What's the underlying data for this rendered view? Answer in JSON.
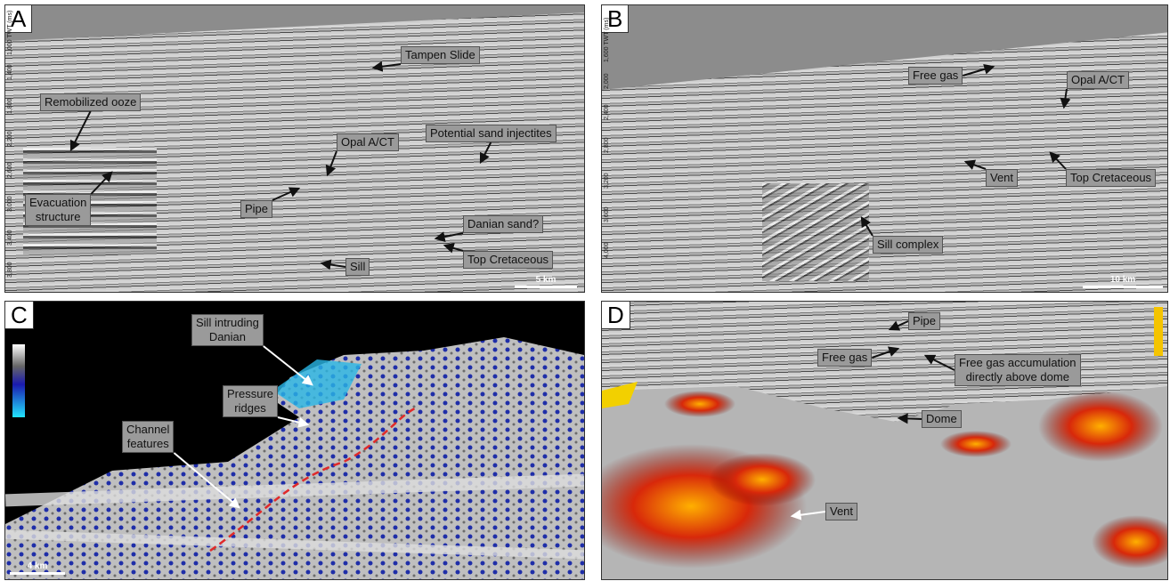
{
  "panels": [
    {
      "letter": "A",
      "scale": "5 km",
      "axis": [
        "1,000 TWT (ms)",
        "1,400",
        "1,800",
        "2,200",
        "2,600",
        "3,000",
        "3,400",
        "3,800"
      ],
      "annotations": [
        [
          "Tampen Slide"
        ],
        [
          "Remobilized ooze"
        ],
        [
          "Potential sand injectites"
        ],
        [
          "Opal A/CT"
        ],
        [
          "Evacuation",
          "structure"
        ],
        [
          "Pipe"
        ],
        [
          "Danian sand?"
        ],
        [
          "Top Cretaceous"
        ],
        [
          "Sill"
        ]
      ]
    },
    {
      "letter": "B",
      "scale": "10 km",
      "axis": [
        "1,600 TWT (ms)",
        "2,000",
        "2,400",
        "2,800",
        "3,200",
        "3,600",
        "4,000"
      ],
      "annotations": [
        [
          "Free gas"
        ],
        [
          "Opal A/CT"
        ],
        [
          "Vent"
        ],
        [
          "Top Cretaceous"
        ],
        [
          "Sill complex"
        ]
      ]
    },
    {
      "letter": "C",
      "scale": "4 km",
      "annotations": [
        [
          "Sill intruding",
          "Danian"
        ],
        [
          "Pressure",
          "ridges"
        ],
        [
          "Channel",
          "features"
        ]
      ]
    },
    {
      "letter": "D",
      "annotations": [
        [
          "Pipe"
        ],
        [
          "Free gas"
        ],
        [
          "Free gas accumulation",
          "directly above dome"
        ],
        [
          "Dome"
        ],
        [
          "Vent"
        ]
      ]
    }
  ]
}
